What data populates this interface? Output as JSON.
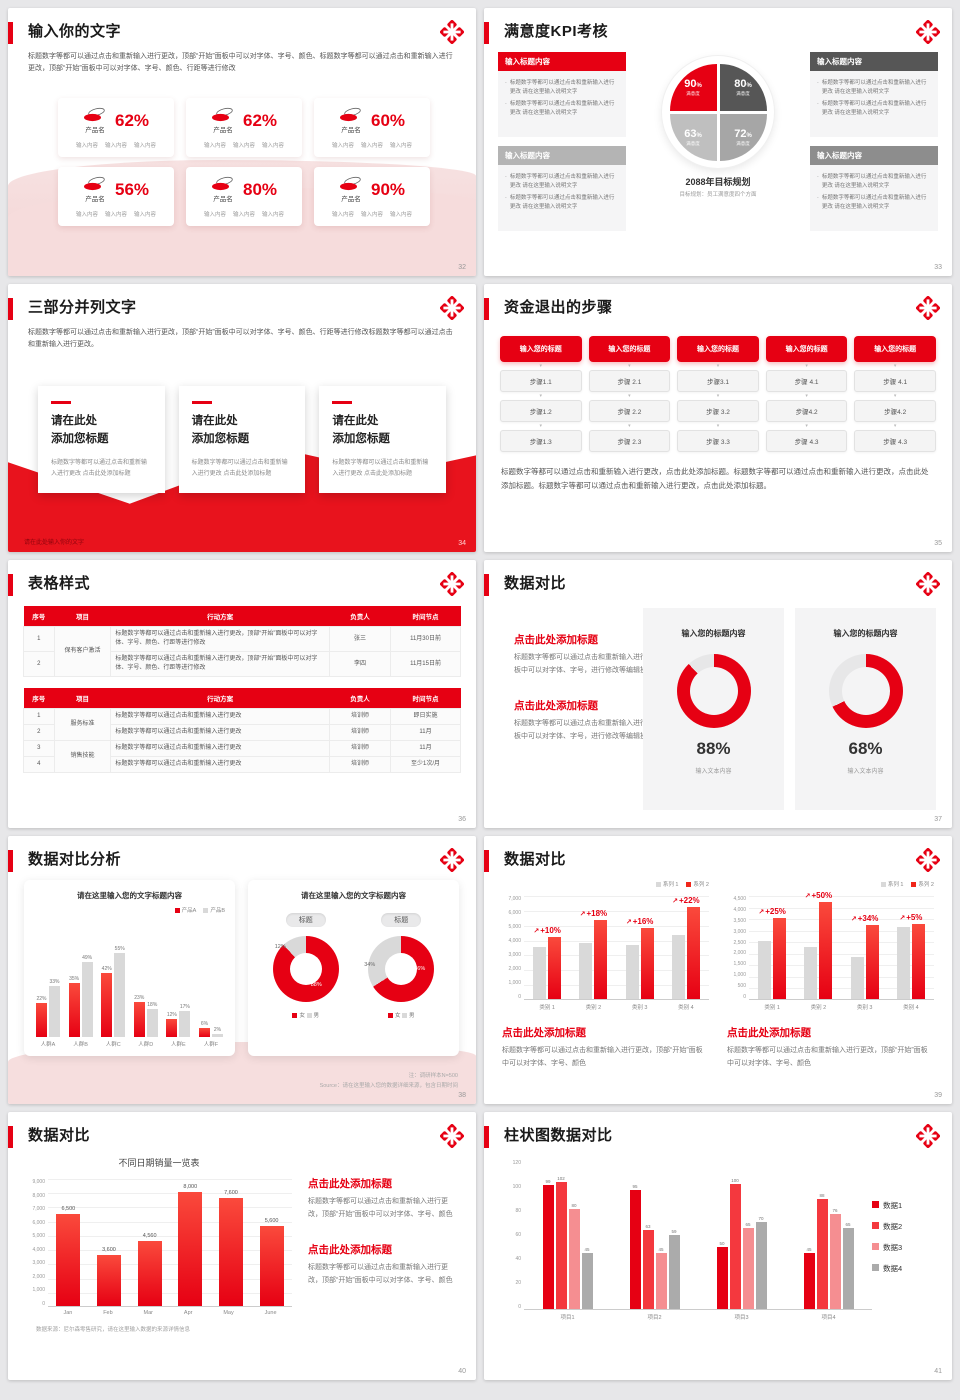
{
  "theme": {
    "red": "#e60013",
    "dark_gray": "#565656",
    "light_gray": "#b4b4b4",
    "mid_gray": "#8d8d8d",
    "bar_gray": "#d9d9d9",
    "pink": "#f6dede"
  },
  "logo": "hospital-cross-logo",
  "slides": {
    "s32": {
      "page": "32",
      "title": "输入你的文字",
      "body": "标题数字等都可以通过点击和重新输入进行更改，顶部“开始”面板中可以对字体、字号、颜色、标题数字等都可以通过点击和重新输入进行更改，顶部“开始”面板中可以对字体、字号、颜色、行距等进行修改",
      "cards": [
        {
          "label": "产品名",
          "pct": "62%",
          "items": [
            "输入内容",
            "输入内容",
            "输入内容"
          ]
        },
        {
          "label": "产品名",
          "pct": "62%",
          "items": [
            "输入内容",
            "输入内容",
            "输入内容"
          ]
        },
        {
          "label": "产品名",
          "pct": "60%",
          "items": [
            "输入内容",
            "输入内容",
            "输入内容"
          ]
        },
        {
          "label": "产品名",
          "pct": "56%",
          "items": [
            "输入内容",
            "输入内容",
            "输入内容"
          ]
        },
        {
          "label": "产品名",
          "pct": "80%",
          "items": [
            "输入内容",
            "输入内容",
            "输入内容"
          ]
        },
        {
          "label": "产品名",
          "pct": "90%",
          "items": [
            "输入内容",
            "输入内容",
            "输入内容"
          ]
        }
      ]
    },
    "s33": {
      "page": "33",
      "title": "满意度KPI考核",
      "box_header": "输入标题内容",
      "bullet": "标题数字等都可以通过点击和重新输入进行更改 请在这里输入说明文字",
      "boxes": [
        {
          "style": "hred"
        },
        {
          "style": "hdark"
        },
        {
          "style": "hlight"
        },
        {
          "style": "hmid"
        }
      ],
      "caption": "2088年目标规划",
      "caption_sub": "目标规划：员工满意度四个方面"
    },
    "s34": {
      "page": "34",
      "title": "三部分并列文字",
      "body": "标题数字等都可以通过点击和重新输入进行更改，顶部“开始”面板中可以对字体、字号、颜色、行距等进行修改标题数字等都可以通过点击和重新输入进行更改。",
      "card_title": "请在此处\n添加您标题",
      "card_body": "标题数字等都可以通过点击和重新输入进行更改 点击此处添加标题",
      "cards": [
        {},
        {},
        {}
      ],
      "footer": "请在此处输入你的文字"
    },
    "s35": {
      "page": "35",
      "title": "资金退出的步骤",
      "col_header": "输入您的标题",
      "columns": [
        [
          "步骤1.1",
          "步骤1.2",
          "步骤1.3"
        ],
        [
          "步骤 2.1",
          "步骤 2.2",
          "步骤 2.3"
        ],
        [
          "步骤3.1",
          "步骤 3.2",
          "步骤 3.3"
        ],
        [
          "步骤 4.1",
          "步骤4.2",
          "步骤 4.3"
        ],
        [
          "步骤 4.1",
          "步骤4.2",
          "步骤 4.3"
        ]
      ],
      "para": "标题数字等都可以通过点击和重新输入进行更改，点击此处添加标题。标题数字等都可以通过点击和重新输入进行更改，点击此处添加标题。标题数字等都可以通过点击和重新输入进行更改，点击此处添加标题。"
    },
    "s36": {
      "page": "36",
      "title": "表格样式",
      "headers": [
        "序号",
        "项目",
        "行动方案",
        "负责人",
        "时间节点"
      ],
      "t1": {
        "action": "标题数字等都可以通过点击和重新输入进行更改，顶部“开始”面板中可以对字体、字号、颜色、行距等进行修改",
        "rows": [
          {
            "no": "1",
            "project": "保有客户激活",
            "span": 2,
            "owner": "张三",
            "time": "11月30日前"
          },
          {
            "no": "2",
            "owner": "李四",
            "time": "11月15日前"
          }
        ]
      },
      "t2": {
        "action": "标题数字等都可以通过点击和重新输入进行更改",
        "rows": [
          {
            "no": "1",
            "project": "服务标准",
            "span": 2,
            "owner": "培训师",
            "time": "即日实施"
          },
          {
            "no": "2",
            "owner": "培训师",
            "time": "11月"
          },
          {
            "no": "3",
            "project": "销售技能",
            "span": 2,
            "owner": "培训师",
            "time": "11月"
          },
          {
            "no": "4",
            "owner": "培训师",
            "time": "至少1次/月"
          }
        ]
      }
    },
    "s37": {
      "page": "37",
      "title": "数据对比",
      "block_heading": "点击此处添加标题",
      "block_body": "标题数字等都可以通过点击和重新输入进行更改，顶部“开始”面板中可以对字体、字号，进行修改等编辑操作",
      "panel_header": "输入您的标题内容",
      "panel_caption": "输入文本内容"
    },
    "s38": {
      "page": "38",
      "title": "数据对比分析",
      "right_title": "请在这里输入您的文字标题内容",
      "pill": "标题",
      "note1": "注：调研样本N=500",
      "note2": "Source：请在这里输入您的数据详细来源，包含日期时间"
    },
    "s39": {
      "page": "39",
      "title": "数据对比",
      "block_heading": "点击此处添加标题",
      "block_body": "标题数字等都可以通过点击和重新输入进行更改，顶部“开始”面板中可以对字体、字号、颜色"
    },
    "s40": {
      "page": "40",
      "title": "数据对比",
      "source": "数据来源：尼尔森零售研究，请在这里输入数据的来源详情信息",
      "block_heading": "点击此处添加标题",
      "block_body": "标题数字等都可以通过点击和重新输入进行更改，顶部“开始”面板中可以对字体、字号、颜色"
    },
    "s41": {
      "page": "41",
      "title": "柱状图数据对比"
    }
  },
  "chart_data": [
    {
      "id": "s33_pie",
      "type": "pie",
      "slices": [
        {
          "value": "90",
          "unit": "%",
          "label": "满意度",
          "color": "#e60013"
        },
        {
          "value": "80",
          "unit": "%",
          "label": "满意度",
          "color": "#565656"
        },
        {
          "value": "63",
          "unit": "%",
          "label": "满意度",
          "color": "#bfbfbf"
        },
        {
          "value": "72",
          "unit": "%",
          "label": "满意度",
          "color": "#a6a6a6"
        }
      ],
      "caption": "2088年目标规划",
      "caption_sub": "目标规划：员工满意度四个方面"
    },
    {
      "id": "s37_left",
      "type": "pie",
      "value_label": "88%",
      "slices": [
        {
          "value": 88,
          "color": "#e60013"
        },
        {
          "value": 12,
          "color": "#e7e7e8"
        }
      ]
    },
    {
      "id": "s37_right",
      "type": "pie",
      "value_label": "68%",
      "slices": [
        {
          "value": 68,
          "color": "#e60013"
        },
        {
          "value": 32,
          "color": "#e7e7e8"
        }
      ]
    },
    {
      "id": "s38_bars",
      "type": "bar",
      "title": "请在这里输入您的文字标题内容",
      "categories": [
        "人群A",
        "人群B",
        "人群C",
        "人群D",
        "人群E",
        "人群F"
      ],
      "series": [
        {
          "name": "产品A",
          "color": "#e60013",
          "values": [
            22,
            35,
            42,
            23,
            12,
            6
          ]
        },
        {
          "name": "产品B",
          "color": "#d9d9d9",
          "values": [
            33,
            49,
            55,
            18,
            17,
            2
          ]
        }
      ],
      "unit": "%",
      "ylim": [
        0,
        60
      ],
      "grid": false,
      "legend_position": "top-right"
    },
    {
      "id": "s38_donut_left",
      "type": "pie",
      "legend": [
        "女",
        "男"
      ],
      "slices": [
        {
          "label": "女",
          "value": 88,
          "color": "#e60013"
        },
        {
          "label": "男",
          "value": 12,
          "color": "#d9d9d9"
        }
      ]
    },
    {
      "id": "s38_donut_right",
      "type": "pie",
      "legend": [
        "女",
        "男"
      ],
      "slices": [
        {
          "label": "女",
          "value": 66,
          "color": "#e60013"
        },
        {
          "label": "男",
          "value": 34,
          "color": "#d9d9d9"
        }
      ]
    },
    {
      "id": "s39_left",
      "type": "bar",
      "categories": [
        "类别 1",
        "类别 2",
        "类别 3",
        "类别 4"
      ],
      "series": [
        {
          "name": "系列 1",
          "color": "#d9d9d9",
          "values": [
            3500,
            3800,
            3650,
            4300
          ]
        },
        {
          "name": "系列 2",
          "color": "#f0261a",
          "values": [
            4200,
            5300,
            4800,
            6200
          ]
        }
      ],
      "growth_labels": [
        "+10%",
        "+18%",
        "+16%",
        "+22%"
      ],
      "ylim": [
        0,
        7000
      ],
      "yticks": [
        "7,000",
        "6,000",
        "5,000",
        "4,000",
        "3,000",
        "2,000",
        "1,000",
        "0"
      ],
      "grid": true,
      "legend_position": "top-right"
    },
    {
      "id": "s39_right",
      "type": "bar",
      "categories": [
        "类别 1",
        "类别 2",
        "类别 3",
        "类别 4"
      ],
      "series": [
        {
          "name": "系列 1",
          "color": "#d9d9d9",
          "values": [
            2500,
            2250,
            1800,
            3100
          ]
        },
        {
          "name": "系列 2",
          "color": "#f0261a",
          "values": [
            3500,
            4200,
            3200,
            3250
          ]
        }
      ],
      "growth_labels": [
        "+25%",
        "+50%",
        "+34%",
        "+5%"
      ],
      "ylim": [
        0,
        4500
      ],
      "yticks": [
        "4,500",
        "4,000",
        "3,500",
        "3,000",
        "2,500",
        "2,000",
        "1,500",
        "1,000",
        "500",
        "0"
      ],
      "grid": true,
      "legend_position": "top-right"
    },
    {
      "id": "s40_bars",
      "type": "bar",
      "title": "不同日期销量一览表",
      "categories": [
        "Jan",
        "Feb",
        "Mar",
        "Apr",
        "May",
        "June"
      ],
      "values": [
        6500,
        3600,
        4560,
        8000,
        7600,
        5600
      ],
      "value_labels": [
        "6,500",
        "3,600",
        "4,560",
        "8,000",
        "7,600",
        "5,600"
      ],
      "color": "#f0261a",
      "ylim": [
        0,
        9000
      ],
      "yticks": [
        "9,000",
        "8,000",
        "7,000",
        "6,000",
        "5,000",
        "4,000",
        "3,000",
        "2,000",
        "1,000",
        "0"
      ],
      "grid": true
    },
    {
      "id": "s41_bars",
      "type": "bar",
      "categories": [
        "项目1",
        "项目2",
        "项目3",
        "项目4"
      ],
      "series": [
        {
          "name": "数据1",
          "color": "#e60013",
          "values": [
            99,
            95,
            50,
            45
          ]
        },
        {
          "name": "数据2",
          "color": "#f4383e",
          "values": [
            102,
            63,
            100,
            88
          ]
        },
        {
          "name": "数据3",
          "color": "#f58e91",
          "values": [
            80,
            45,
            65,
            76
          ]
        },
        {
          "name": "数据4",
          "color": "#ababab",
          "values": [
            45,
            59,
            70,
            65
          ]
        }
      ],
      "ylim": [
        0,
        120
      ],
      "yticks": [
        "120",
        "100",
        "80",
        "60",
        "40",
        "20",
        "0"
      ],
      "grid": false
    }
  ]
}
